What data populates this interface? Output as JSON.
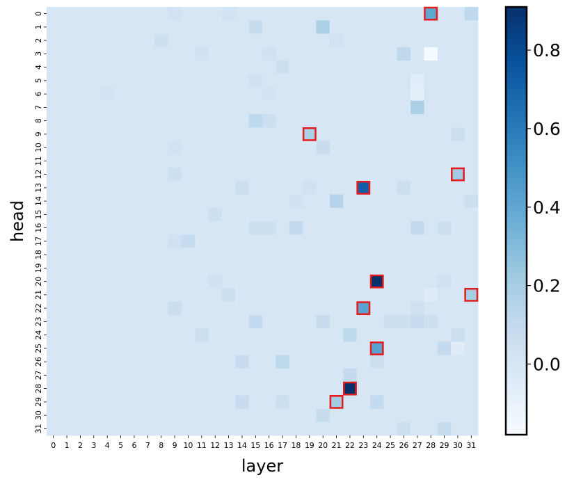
{
  "chart_data": {
    "type": "heatmap",
    "xlabel": "layer",
    "ylabel": "head",
    "x_categories": [
      "0",
      "1",
      "2",
      "3",
      "4",
      "5",
      "6",
      "7",
      "8",
      "9",
      "10",
      "11",
      "12",
      "13",
      "14",
      "15",
      "16",
      "17",
      "18",
      "19",
      "20",
      "21",
      "22",
      "23",
      "24",
      "25",
      "26",
      "27",
      "28",
      "29",
      "30",
      "31"
    ],
    "y_categories": [
      "0",
      "1",
      "2",
      "3",
      "4",
      "5",
      "6",
      "7",
      "8",
      "9",
      "10",
      "11",
      "12",
      "13",
      "14",
      "15",
      "16",
      "17",
      "18",
      "19",
      "20",
      "21",
      "22",
      "23",
      "24",
      "25",
      "26",
      "27",
      "28",
      "29",
      "30",
      "31"
    ],
    "colormap": "Blues",
    "vmin": -0.18,
    "vmax": 0.91,
    "baseline": 0.0,
    "colorbar_ticks": [
      "0.0",
      "0.2",
      "0.4",
      "0.6",
      "0.8"
    ],
    "colorbar_tick_values": [
      0.0,
      0.2,
      0.4,
      0.6,
      0.8
    ],
    "highlight_color": "#e41a1c",
    "cells": [
      [
        0,
        28,
        0.4
      ],
      [
        0,
        31,
        0.12
      ],
      [
        0,
        9,
        0.03
      ],
      [
        0,
        13,
        0.03
      ],
      [
        1,
        20,
        0.18
      ],
      [
        1,
        15,
        0.08
      ],
      [
        2,
        8,
        0.05
      ],
      [
        2,
        21,
        0.03
      ],
      [
        3,
        28,
        -0.17
      ],
      [
        3,
        26,
        0.12
      ],
      [
        3,
        11,
        0.04
      ],
      [
        3,
        16,
        0.04
      ],
      [
        4,
        17,
        0.05
      ],
      [
        5,
        15,
        0.04
      ],
      [
        5,
        27,
        -0.06
      ],
      [
        6,
        27,
        -0.08
      ],
      [
        6,
        4,
        0.03
      ],
      [
        6,
        16,
        0.03
      ],
      [
        7,
        27,
        0.18
      ],
      [
        8,
        15,
        0.12
      ],
      [
        8,
        16,
        0.06
      ],
      [
        9,
        19,
        0.18
      ],
      [
        9,
        30,
        0.06
      ],
      [
        10,
        20,
        0.08
      ],
      [
        10,
        9,
        0.03
      ],
      [
        12,
        30,
        0.22
      ],
      [
        12,
        9,
        0.05
      ],
      [
        13,
        23,
        0.72
      ],
      [
        13,
        14,
        0.06
      ],
      [
        13,
        26,
        0.06
      ],
      [
        13,
        19,
        0.04
      ],
      [
        14,
        21,
        0.15
      ],
      [
        14,
        31,
        0.06
      ],
      [
        14,
        18,
        0.04
      ],
      [
        15,
        12,
        0.05
      ],
      [
        16,
        18,
        0.1
      ],
      [
        16,
        27,
        0.1
      ],
      [
        16,
        15,
        0.05
      ],
      [
        16,
        16,
        0.05
      ],
      [
        16,
        29,
        0.06
      ],
      [
        17,
        10,
        0.08
      ],
      [
        17,
        9,
        0.04
      ],
      [
        20,
        24,
        0.92
      ],
      [
        20,
        12,
        0.04
      ],
      [
        20,
        29,
        0.04
      ],
      [
        21,
        31,
        0.2
      ],
      [
        21,
        28,
        -0.05
      ],
      [
        21,
        13,
        0.06
      ],
      [
        22,
        23,
        0.42
      ],
      [
        22,
        9,
        0.07
      ],
      [
        22,
        27,
        0.04
      ],
      [
        23,
        15,
        0.1
      ],
      [
        23,
        20,
        0.08
      ],
      [
        23,
        25,
        0.05
      ],
      [
        23,
        26,
        0.05
      ],
      [
        23,
        27,
        0.08
      ],
      [
        23,
        28,
        0.05
      ],
      [
        24,
        22,
        0.12
      ],
      [
        24,
        11,
        0.06
      ],
      [
        24,
        30,
        0.06
      ],
      [
        25,
        24,
        0.42
      ],
      [
        25,
        29,
        0.1
      ],
      [
        25,
        30,
        -0.05
      ],
      [
        26,
        14,
        0.08
      ],
      [
        26,
        17,
        0.12
      ],
      [
        26,
        24,
        0.06
      ],
      [
        27,
        22,
        0.1
      ],
      [
        28,
        22,
        0.92
      ],
      [
        29,
        21,
        0.22
      ],
      [
        29,
        24,
        0.1
      ],
      [
        29,
        14,
        0.08
      ],
      [
        29,
        17,
        0.06
      ],
      [
        30,
        20,
        0.08
      ],
      [
        31,
        29,
        0.08
      ],
      [
        31,
        26,
        0.06
      ]
    ],
    "highlights": [
      [
        0,
        28
      ],
      [
        9,
        19
      ],
      [
        12,
        30
      ],
      [
        13,
        23
      ],
      [
        20,
        24
      ],
      [
        21,
        31
      ],
      [
        22,
        23
      ],
      [
        25,
        24
      ],
      [
        28,
        22
      ],
      [
        29,
        21
      ]
    ]
  }
}
